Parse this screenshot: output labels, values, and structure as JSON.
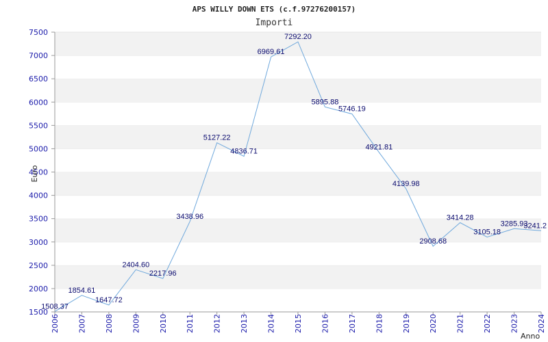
{
  "chart_data": {
    "type": "line",
    "title": "APS WILLY DOWN ETS (c.f.97276200157)",
    "subtitle": "Importi",
    "xlabel": "Anno",
    "ylabel": "Euro",
    "ylim": [
      1500,
      7500
    ],
    "ytick_step": 500,
    "grid": "horizontal-bands",
    "categories": [
      "2006",
      "2007",
      "2008",
      "2009",
      "2010",
      "2011",
      "2012",
      "2013",
      "2014",
      "2015",
      "2016",
      "2017",
      "2018",
      "2019",
      "2020",
      "2021",
      "2022",
      "2023",
      "2024"
    ],
    "series": [
      {
        "name": "Importi",
        "values": [
          1508.37,
          1854.61,
          1647.72,
          2404.6,
          2217.96,
          3438.96,
          5127.22,
          4836.71,
          6969.61,
          7292.2,
          5895.88,
          5746.19,
          4921.81,
          4139.98,
          2908.68,
          3414.28,
          3105.18,
          3285.93,
          3241.2
        ],
        "labels": [
          "1508.37",
          "1854.61",
          "1647.72",
          "2404.60",
          "2217.96",
          "3438.96",
          "5127.22",
          "4836.71",
          "6969.61",
          "7292.20",
          "5895.88",
          "5746.19",
          "4921.81",
          "4139.98",
          "2908.68",
          "3414.28",
          "3105.18",
          "3285.93",
          "3241.2"
        ]
      }
    ],
    "colors": {
      "line": "#6fa8dc",
      "band": "#f2f2f2",
      "axis": "#999999",
      "tick_text": "#1a1aaa",
      "label_text": "#0a0a6e"
    }
  }
}
